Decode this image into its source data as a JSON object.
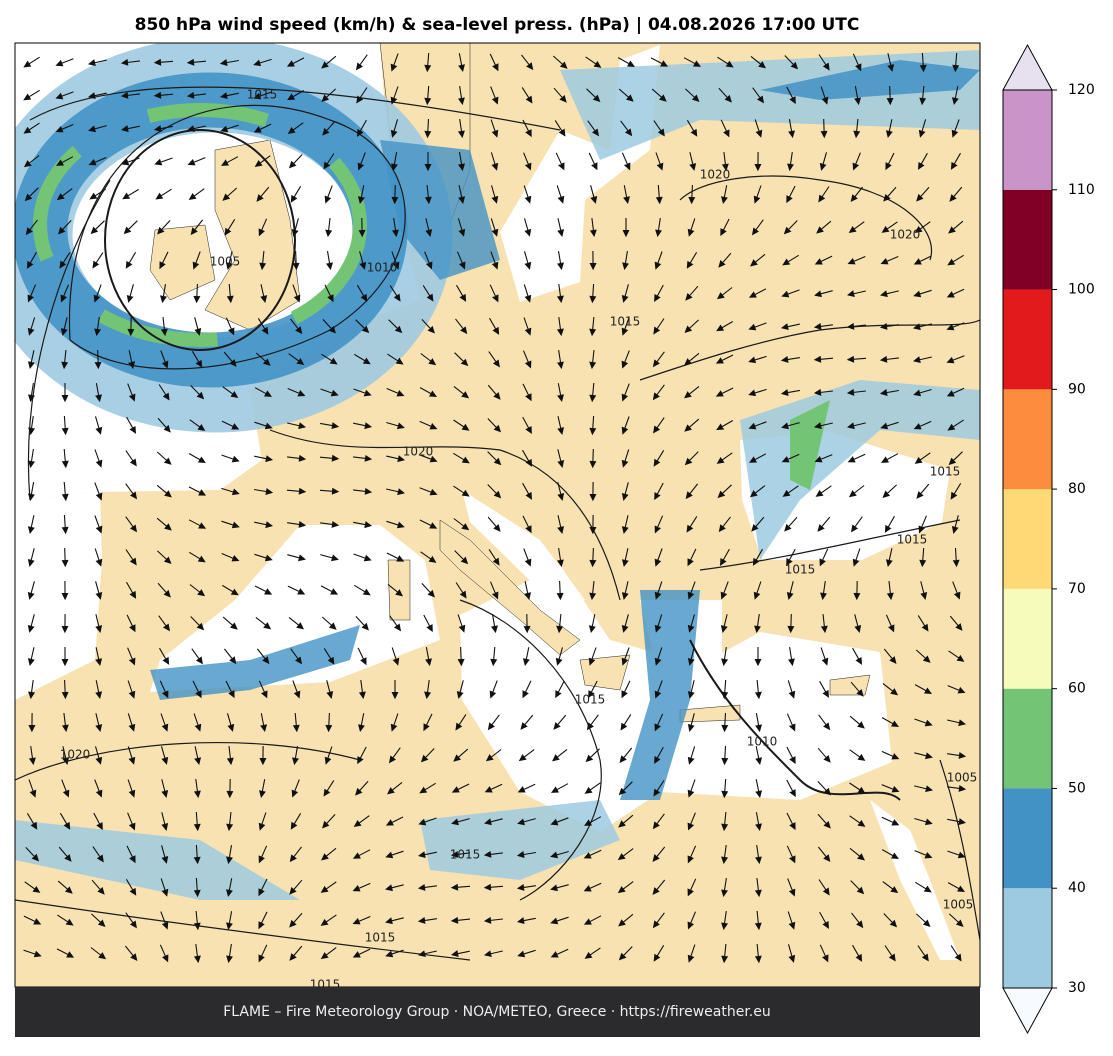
{
  "title": "850 hPa wind speed (km/h) & sea-level press. (hPa)  |  04.08.2026 17:00 UTC",
  "footer": "FLAME – Fire Meteorology Group · NOA/METEO, Greece · https://fireweather.eu",
  "colorbar": {
    "ticks": [
      30,
      40,
      50,
      60,
      70,
      80,
      90,
      100,
      110,
      120
    ],
    "colors": [
      "#9ecae1",
      "#4292c6",
      "#74c476",
      "#f7fbb9",
      "#fed976",
      "#fd8d3c",
      "#e31a1c",
      "#800026",
      "#c994c7"
    ],
    "extend_colors": [
      "#f7fbff",
      "#e7e1ef"
    ]
  },
  "isobar_labels": [
    "1015",
    "1005",
    "1010",
    "1020",
    "1020",
    "1015",
    "1020",
    "1015",
    "1015",
    "1015",
    "1015",
    "1020",
    "1015",
    "1010",
    "1005",
    "1005",
    "1015",
    "1015"
  ]
}
